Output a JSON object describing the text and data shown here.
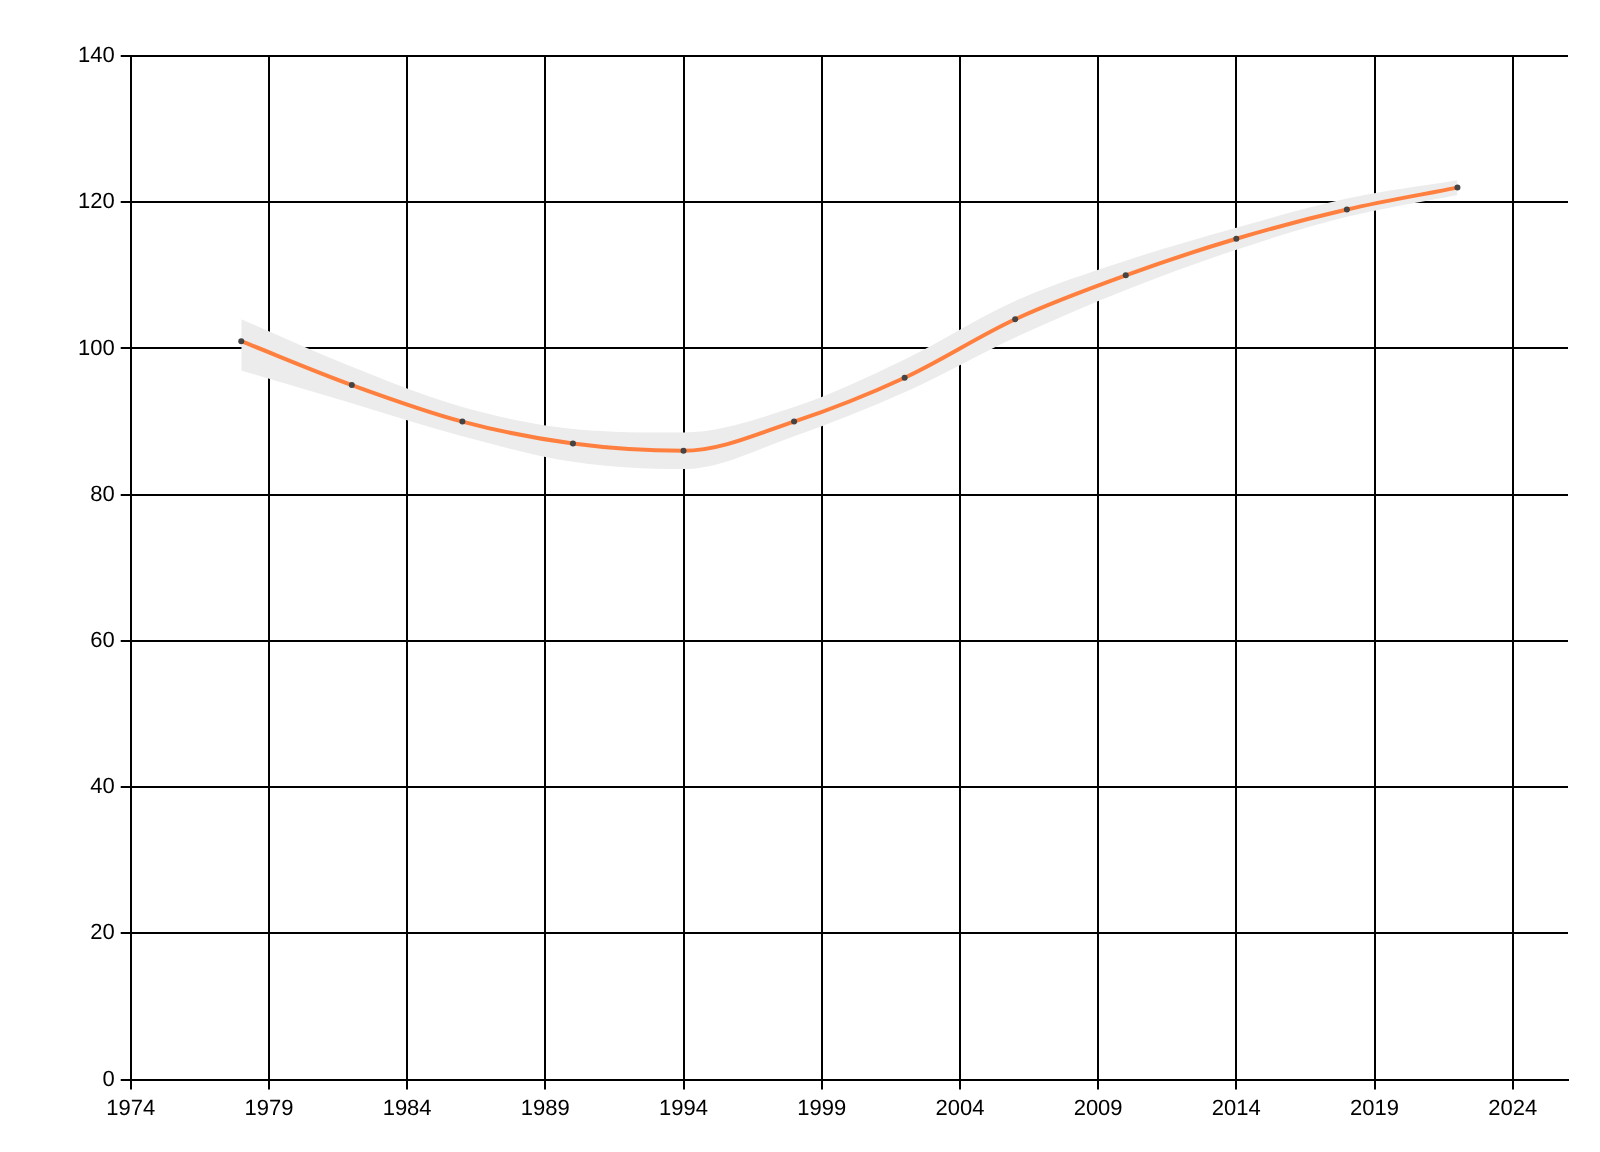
{
  "chart_data": {
    "type": "line",
    "x": [
      1978,
      1982,
      1986,
      1990,
      1994,
      1998,
      2002,
      2006,
      2010,
      2014,
      2018,
      2022
    ],
    "series": [
      {
        "color": "#ff7f3f",
        "values": [
          101,
          95,
          90,
          87,
          86,
          90,
          96,
          104,
          110,
          115,
          119,
          122
        ],
        "lower": [
          97,
          92.5,
          88,
          84.5,
          83.5,
          88,
          94,
          101.5,
          108,
          113.5,
          118,
          121
        ],
        "upper": [
          104,
          97.5,
          92,
          89,
          88.5,
          92,
          98.5,
          106.5,
          112,
          116.5,
          120.5,
          123
        ]
      }
    ],
    "xlim": [
      1974,
      2026
    ],
    "xticks": [
      1974,
      1979,
      1984,
      1989,
      1994,
      1999,
      2004,
      2009,
      2014,
      2019,
      2024
    ],
    "ylim": [
      0,
      140
    ],
    "yticks": [
      0,
      20,
      40,
      60,
      80,
      100,
      120,
      140
    ],
    "grid": true,
    "marker": "circle",
    "line_style": "solid"
  }
}
